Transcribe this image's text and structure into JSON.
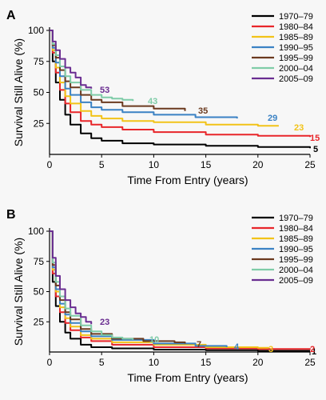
{
  "chart_data": [
    {
      "panel_label": "A",
      "type": "line",
      "xlabel": "Time From Entry (years)",
      "ylabel": "Survival Still Alive (%)",
      "xlim": [
        0,
        25
      ],
      "ylim": [
        0,
        100
      ],
      "xticks": [
        0,
        5,
        10,
        15,
        20,
        25
      ],
      "yticks": [
        25,
        50,
        75,
        100
      ],
      "grid": false,
      "legend": "top-right",
      "series": [
        {
          "name": "1970–79",
          "color": "#000000",
          "end_label": "5",
          "points": [
            [
              0,
              100
            ],
            [
              0.3,
              75
            ],
            [
              0.6,
              58
            ],
            [
              1,
              44
            ],
            [
              1.5,
              32
            ],
            [
              2,
              24
            ],
            [
              3,
              17
            ],
            [
              4,
              13
            ],
            [
              5,
              11
            ],
            [
              7,
              9
            ],
            [
              10,
              8
            ],
            [
              15,
              7
            ],
            [
              20,
              6
            ],
            [
              25,
              5
            ]
          ]
        },
        {
          "name": "1980–84",
          "color": "#e8262a",
          "end_label": "15",
          "points": [
            [
              0,
              100
            ],
            [
              0.3,
              82
            ],
            [
              0.6,
              66
            ],
            [
              1,
              52
            ],
            [
              1.5,
              41
            ],
            [
              2,
              34
            ],
            [
              3,
              27
            ],
            [
              4,
              24
            ],
            [
              5,
              22
            ],
            [
              7,
              20
            ],
            [
              10,
              18
            ],
            [
              15,
              16
            ],
            [
              20,
              15
            ],
            [
              25,
              14
            ]
          ]
        },
        {
          "name": "1985–89",
          "color": "#f2c318",
          "end_label": "23",
          "points": [
            [
              0,
              100
            ],
            [
              0.3,
              84
            ],
            [
              0.6,
              70
            ],
            [
              1,
              58
            ],
            [
              1.5,
              47
            ],
            [
              2,
              41
            ],
            [
              3,
              35
            ],
            [
              4,
              31
            ],
            [
              5,
              29
            ],
            [
              7,
              27
            ],
            [
              10,
              26
            ],
            [
              15,
              24
            ],
            [
              20,
              23
            ],
            [
              22,
              23
            ]
          ]
        },
        {
          "name": "1990–95",
          "color": "#3b82c4",
          "end_label": "29",
          "points": [
            [
              0,
              100
            ],
            [
              0.3,
              86
            ],
            [
              0.6,
              74
            ],
            [
              1,
              63
            ],
            [
              1.5,
              53
            ],
            [
              2,
              48
            ],
            [
              3,
              42
            ],
            [
              4,
              38
            ],
            [
              5,
              36
            ],
            [
              7,
              34
            ],
            [
              10,
              32
            ],
            [
              14,
              30
            ],
            [
              18,
              29
            ]
          ]
        },
        {
          "name": "1995–99",
          "color": "#6b3a1f",
          "end_label": "35",
          "points": [
            [
              0,
              100
            ],
            [
              0.3,
              88
            ],
            [
              0.6,
              78
            ],
            [
              1,
              68
            ],
            [
              1.5,
              59
            ],
            [
              2,
              54
            ],
            [
              3,
              48
            ],
            [
              4,
              44
            ],
            [
              5,
              42
            ],
            [
              7,
              39
            ],
            [
              10,
              37
            ],
            [
              13,
              35
            ]
          ]
        },
        {
          "name": "2000–04",
          "color": "#7fcca8",
          "end_label": "43",
          "points": [
            [
              0,
              100
            ],
            [
              0.3,
              89
            ],
            [
              0.6,
              80
            ],
            [
              1,
              71
            ],
            [
              1.5,
              63
            ],
            [
              2,
              58
            ],
            [
              3,
              52
            ],
            [
              4,
              48
            ],
            [
              5,
              46
            ],
            [
              6,
              45
            ],
            [
              7,
              44
            ],
            [
              8,
              43
            ]
          ]
        },
        {
          "name": "2005–09",
          "color": "#6a2d91",
          "end_label": "53",
          "points": [
            [
              0,
              100
            ],
            [
              0.3,
              91
            ],
            [
              0.6,
              84
            ],
            [
              1,
              77
            ],
            [
              1.5,
              70
            ],
            [
              2,
              66
            ],
            [
              2.5,
              62
            ],
            [
              3,
              56
            ],
            [
              3.5,
              54
            ],
            [
              4,
              53
            ]
          ]
        }
      ]
    },
    {
      "panel_label": "B",
      "type": "line",
      "xlabel": "Time From Entry (years)",
      "ylabel": "Survival Still Alive (%)",
      "xlim": [
        0,
        25
      ],
      "ylim": [
        0,
        100
      ],
      "xticks": [
        0,
        5,
        10,
        15,
        20,
        25
      ],
      "yticks": [
        25,
        50,
        75,
        100
      ],
      "grid": false,
      "legend": "top-right",
      "series": [
        {
          "name": "1970–79",
          "color": "#000000",
          "end_label": "1",
          "points": [
            [
              0,
              100
            ],
            [
              0.3,
              58
            ],
            [
              0.6,
              38
            ],
            [
              1,
              25
            ],
            [
              1.5,
              16
            ],
            [
              2,
              11
            ],
            [
              3,
              6
            ],
            [
              4,
              4
            ],
            [
              6,
              3
            ],
            [
              10,
              2
            ],
            [
              15,
              1.5
            ],
            [
              20,
              1
            ],
            [
              25,
              1
            ]
          ]
        },
        {
          "name": "1980–84",
          "color": "#e8262a",
          "end_label": "2",
          "points": [
            [
              0,
              100
            ],
            [
              0.3,
              65
            ],
            [
              0.6,
              46
            ],
            [
              1,
              33
            ],
            [
              1.5,
              24
            ],
            [
              2,
              18
            ],
            [
              3,
              12
            ],
            [
              4,
              9
            ],
            [
              6,
              6
            ],
            [
              10,
              4
            ],
            [
              15,
              3
            ],
            [
              20,
              2.5
            ],
            [
              25,
              2
            ]
          ]
        },
        {
          "name": "1985–89",
          "color": "#f2c318",
          "end_label": "3",
          "points": [
            [
              0,
              100
            ],
            [
              0.3,
              68
            ],
            [
              0.6,
              50
            ],
            [
              1,
              37
            ],
            [
              1.5,
              28
            ],
            [
              2,
              21
            ],
            [
              3,
              14
            ],
            [
              4,
              11
            ],
            [
              6,
              8
            ],
            [
              10,
              6
            ],
            [
              15,
              4
            ],
            [
              20,
              3.5
            ],
            [
              21,
              3
            ]
          ]
        },
        {
          "name": "1990–95",
          "color": "#3b82c4",
          "end_label": "4",
          "points": [
            [
              0,
              100
            ],
            [
              0.3,
              70
            ],
            [
              0.6,
              52
            ],
            [
              1,
              40
            ],
            [
              1.5,
              31
            ],
            [
              2,
              24
            ],
            [
              3,
              17
            ],
            [
              4,
              13
            ],
            [
              6,
              10
            ],
            [
              10,
              7
            ],
            [
              14,
              5
            ],
            [
              17,
              4
            ]
          ]
        },
        {
          "name": "1995–99",
          "color": "#6b3a1f",
          "end_label": "7",
          "points": [
            [
              0,
              100
            ],
            [
              0.3,
              72
            ],
            [
              0.6,
              55
            ],
            [
              1,
              43
            ],
            [
              1.5,
              33
            ],
            [
              2,
              27
            ],
            [
              3,
              19
            ],
            [
              4,
              15
            ],
            [
              6,
              11
            ],
            [
              9,
              9
            ],
            [
              12,
              8
            ],
            [
              13,
              7
            ]
          ]
        },
        {
          "name": "2000–04",
          "color": "#7fcca8",
          "end_label": "10",
          "points": [
            [
              0,
              100
            ],
            [
              0.3,
              74
            ],
            [
              0.6,
              58
            ],
            [
              1,
              46
            ],
            [
              1.5,
              36
            ],
            [
              2,
              30
            ],
            [
              3,
              22
            ],
            [
              4,
              17
            ],
            [
              5,
              14
            ],
            [
              6,
              12
            ],
            [
              7,
              11
            ],
            [
              8,
              10
            ]
          ]
        },
        {
          "name": "2005–09",
          "color": "#6a2d91",
          "end_label": "23",
          "points": [
            [
              0,
              100
            ],
            [
              0.3,
              78
            ],
            [
              0.6,
              63
            ],
            [
              1,
              52
            ],
            [
              1.5,
              43
            ],
            [
              2,
              37
            ],
            [
              2.5,
              32
            ],
            [
              3,
              29
            ],
            [
              3.5,
              25
            ],
            [
              4,
              23
            ]
          ]
        }
      ]
    }
  ]
}
